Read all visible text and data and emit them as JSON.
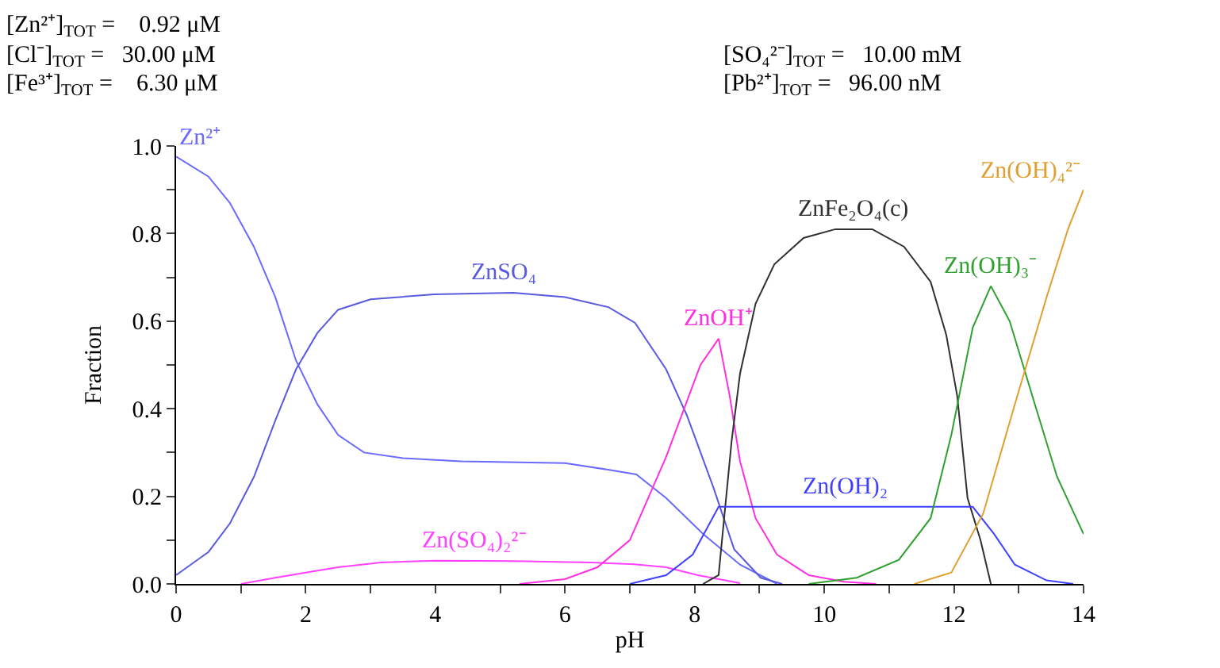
{
  "chart_data": {
    "type": "line",
    "xlabel": "pH",
    "ylabel": "Fraction",
    "xlim": [
      0,
      14
    ],
    "ylim": [
      0,
      1.0
    ],
    "xticks": [
      0,
      {
        "value": 1,
        "label": null
      },
      2,
      {
        "value": 3,
        "label": null
      },
      4,
      {
        "value": 5,
        "label": null
      },
      6,
      {
        "value": 7,
        "label": null
      },
      8,
      {
        "value": 9,
        "label": null
      },
      10,
      {
        "value": 11,
        "label": null
      },
      12,
      {
        "value": 13,
        "label": null
      },
      14
    ],
    "yticks": [
      {
        "value": 0,
        "label": "0.0"
      },
      {
        "value": 0.1,
        "label": null
      },
      {
        "value": 0.2,
        "label": "0.2"
      },
      {
        "value": 0.3,
        "label": null
      },
      {
        "value": 0.4,
        "label": "0.4"
      },
      {
        "value": 0.5,
        "label": null
      },
      {
        "value": 0.6,
        "label": "0.6"
      },
      {
        "value": 0.7,
        "label": null
      },
      {
        "value": 0.8,
        "label": "0.8"
      },
      {
        "value": 0.9,
        "label": null
      },
      {
        "value": 1.0,
        "label": "1.0"
      }
    ],
    "legend": false,
    "marker": "none",
    "line_style": "solid",
    "annotations": [
      "[Zn²⁺]$_{TOT}$ =    0.92 μM",
      "[Cl⁻]$_{TOT}$ =   30.00 μM",
      "[Fe³⁺]$_{TOT}$ =    6.30 μM",
      "[SO₄²⁻]$_{TOT}$ =   10.00 mM",
      "[Pb²⁺]$_{TOT}$ =   96.00 nM"
    ],
    "series": [
      {
        "name": "Zn²⁺",
        "color": "#6a6aff",
        "x": [
          0,
          0.5,
          0.83,
          1.2,
          1.53,
          1.85,
          2.18,
          2.5,
          2.9,
          3.5,
          4.4,
          6.0,
          6.7,
          7.1,
          7.56,
          8.13,
          8.7,
          9.27
        ],
        "values": [
          0.976,
          0.93,
          0.87,
          0.77,
          0.655,
          0.51,
          0.41,
          0.34,
          0.3,
          0.287,
          0.28,
          0.276,
          0.26,
          0.25,
          0.196,
          0.114,
          0.044,
          0
        ]
      },
      {
        "name": "ZnSO₄",
        "color": "#5a5ae0",
        "x": [
          0,
          0.5,
          0.83,
          1.2,
          1.53,
          1.85,
          2.18,
          2.5,
          3.0,
          3.98,
          5.2,
          6.0,
          6.67,
          7.08,
          7.56,
          7.88,
          8.29,
          8.61,
          9.02,
          9.35
        ],
        "values": [
          0.02,
          0.073,
          0.138,
          0.244,
          0.373,
          0.49,
          0.573,
          0.626,
          0.65,
          0.661,
          0.665,
          0.655,
          0.632,
          0.596,
          0.49,
          0.385,
          0.22,
          0.079,
          0.014,
          0
        ]
      },
      {
        "name": "Zn(SO₄)₂²⁻",
        "color": "#ff40ff",
        "x": [
          1.0,
          1.53,
          2.0,
          2.5,
          3.16,
          4.0,
          5.2,
          6.4,
          7.07,
          7.56,
          8.05,
          8.7
        ],
        "values": [
          0,
          0.014,
          0.026,
          0.038,
          0.049,
          0.053,
          0.052,
          0.049,
          0.045,
          0.038,
          0.02,
          0.002
        ]
      },
      {
        "name": "ZnOH⁺",
        "color": "#ff30e0",
        "x": [
          5.3,
          6.0,
          6.5,
          7.0,
          7.56,
          8.09,
          8.37,
          8.54,
          8.7,
          8.94,
          9.27,
          9.76,
          10.3,
          10.8
        ],
        "values": [
          0,
          0.011,
          0.038,
          0.1,
          0.29,
          0.5,
          0.56,
          0.43,
          0.28,
          0.15,
          0.067,
          0.02,
          0.005,
          0
        ]
      },
      {
        "name": "ZnFe₂O₄(c)",
        "color": "#303030",
        "x": [
          8.13,
          8.37,
          8.57,
          8.7,
          8.94,
          9.23,
          9.68,
          10.17,
          10.74,
          11.23,
          11.64,
          11.88,
          12.05,
          12.21,
          12.41,
          12.57
        ],
        "values": [
          0,
          0.02,
          0.326,
          0.48,
          0.64,
          0.73,
          0.79,
          0.81,
          0.81,
          0.77,
          0.69,
          0.57,
          0.43,
          0.196,
          0.1,
          0
        ]
      },
      {
        "name": "Zn(OH)₂",
        "color": "#4040ff",
        "x": [
          7.0,
          7.56,
          7.97,
          8.37,
          12.29,
          12.62,
          12.94,
          13.43,
          13.84
        ],
        "values": [
          0,
          0.02,
          0.067,
          0.176,
          0.176,
          0.114,
          0.044,
          0.008,
          0
        ]
      },
      {
        "name": "Zn(OH)₃⁻",
        "color": "#30a030",
        "x": [
          9.76,
          10.5,
          11.15,
          11.64,
          11.96,
          12.29,
          12.57,
          12.86,
          13.27,
          13.59,
          14.0
        ],
        "values": [
          0,
          0.014,
          0.055,
          0.15,
          0.34,
          0.585,
          0.68,
          0.6,
          0.4,
          0.245,
          0.114
        ]
      },
      {
        "name": "Zn(OH)₄²⁻",
        "color": "#e0a030",
        "x": [
          11.39,
          11.96,
          12.45,
          12.94,
          13.43,
          13.76,
          14.0
        ],
        "values": [
          0,
          0.026,
          0.16,
          0.41,
          0.655,
          0.81,
          0.9
        ]
      }
    ]
  }
}
